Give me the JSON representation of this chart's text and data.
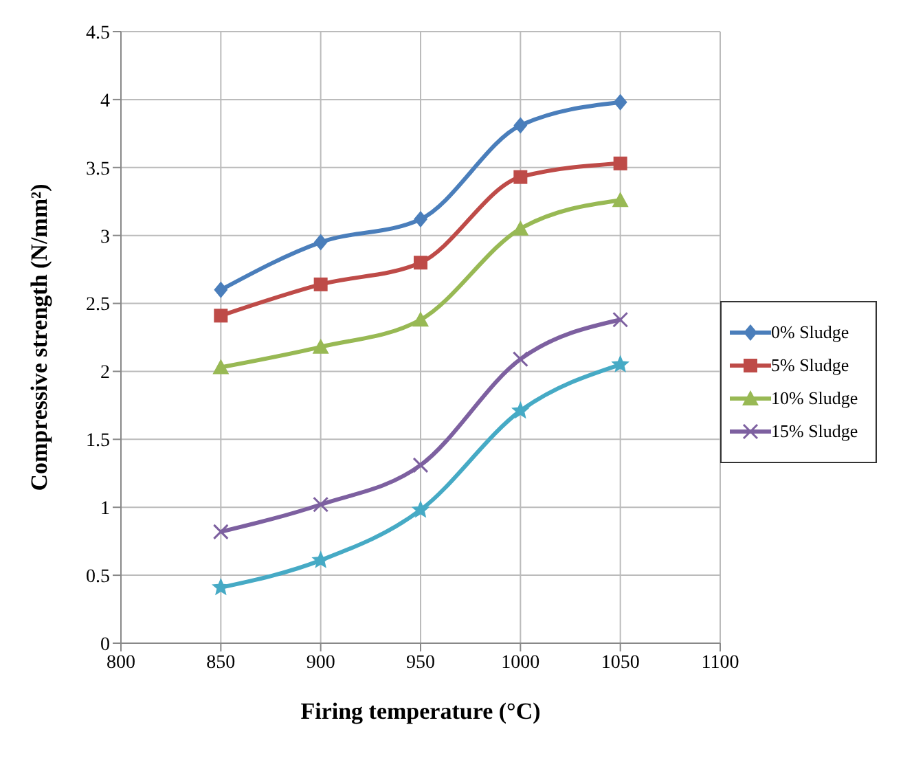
{
  "chart_data": {
    "type": "line",
    "xlabel": "Firing temperature (°C)",
    "ylabel": "Compressive strength (N/mm²)",
    "x": [
      850,
      900,
      950,
      1000,
      1050
    ],
    "xlim": [
      800,
      1100
    ],
    "xticks": [
      800,
      850,
      900,
      950,
      1000,
      1050,
      1100
    ],
    "ylim": [
      0,
      4.5
    ],
    "yticks": [
      0,
      0.5,
      1,
      1.5,
      2,
      2.5,
      3,
      3.5,
      4,
      4.5
    ],
    "grid": true,
    "legend": "right",
    "series": [
      {
        "name": "0% Sludge",
        "color": "#4a7ebb",
        "marker": "diamond",
        "values": [
          2.6,
          2.95,
          3.12,
          3.81,
          3.98
        ]
      },
      {
        "name": "5% Sludge",
        "color": "#be4b48",
        "marker": "square",
        "values": [
          2.41,
          2.64,
          2.8,
          3.43,
          3.53
        ]
      },
      {
        "name": "10% Sludge",
        "color": "#98b954",
        "marker": "triangle",
        "values": [
          2.03,
          2.18,
          2.38,
          3.05,
          3.26
        ]
      },
      {
        "name": "15% Sludge",
        "color": "#7d60a0",
        "marker": "cross",
        "values": [
          0.82,
          1.02,
          1.31,
          2.09,
          2.38
        ]
      },
      {
        "color": "#46aac5",
        "marker": "star",
        "values": [
          0.41,
          0.61,
          0.98,
          1.71,
          2.05
        ]
      }
    ]
  }
}
